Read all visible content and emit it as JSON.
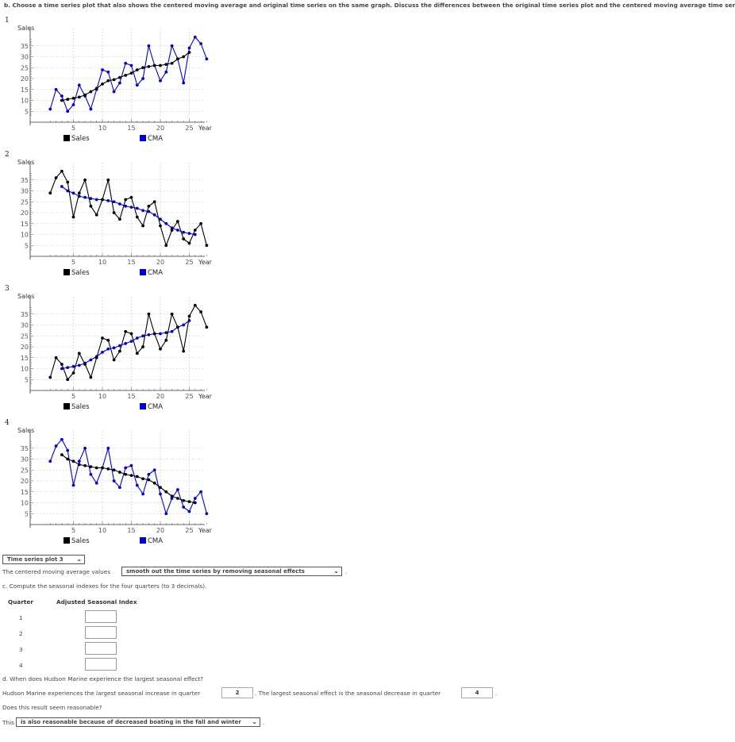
{
  "question_b": "b. Choose a time series plot that also shows the centered moving average and original time series on the same graph. Discuss the differences between the original time series plot and the centered moving average time series.",
  "plots": [
    {
      "number": "1",
      "sales_color": "#0000dd",
      "cma_color": "#000000",
      "legend_sales": "Sales",
      "legend_cma": "CMA"
    },
    {
      "number": "2",
      "sales_color": "#000000",
      "cma_color": "#0000dd",
      "legend_sales": "Sales",
      "legend_cma": "CMA"
    },
    {
      "number": "3",
      "sales_color": "#000000",
      "cma_color": "#0000dd",
      "legend_sales": "Sales",
      "legend_cma": "CMA"
    },
    {
      "number": "4",
      "sales_color": "#0000dd",
      "cma_color": "#000000",
      "legend_sales": "Sales",
      "legend_cma": "CMA"
    }
  ],
  "chart_data": [
    {
      "type": "line",
      "ylabel": "Sales",
      "xlabel": "Year",
      "x_ticks": [
        5,
        10,
        15,
        20,
        25
      ],
      "y_ticks": [
        5,
        10,
        15,
        20,
        25,
        30,
        35
      ],
      "ylim": [
        2,
        40
      ],
      "xlim": [
        0,
        28
      ],
      "x": [
        1,
        2,
        3,
        4,
        5,
        6,
        7,
        8,
        9,
        10,
        11,
        12,
        13,
        14,
        15,
        16,
        17,
        18,
        19,
        20,
        21,
        22,
        23,
        24,
        25,
        26,
        27,
        28
      ],
      "series": [
        {
          "name": "Sales",
          "values": [
            6,
            15,
            12,
            5,
            8,
            17,
            12,
            6,
            15,
            24,
            23,
            14,
            18,
            27,
            26,
            17,
            20,
            35,
            26,
            19,
            23,
            35,
            29,
            18,
            34,
            39,
            36,
            29
          ]
        },
        {
          "name": "CMA",
          "values": [
            null,
            null,
            10,
            10.5,
            11,
            11.5,
            12.5,
            14,
            15.5,
            17.5,
            19,
            19.5,
            20.5,
            21.5,
            22.5,
            24,
            25,
            25.5,
            26,
            26,
            26.5,
            27,
            29,
            30,
            32,
            null,
            null,
            null
          ]
        }
      ]
    },
    {
      "type": "line",
      "ylabel": "Sales",
      "xlabel": "Year",
      "x_ticks": [
        5,
        10,
        15,
        20,
        25
      ],
      "y_ticks": [
        5,
        10,
        15,
        20,
        25,
        30,
        35
      ],
      "ylim": [
        2,
        40
      ],
      "xlim": [
        0,
        28
      ],
      "x": [
        1,
        2,
        3,
        4,
        5,
        6,
        7,
        8,
        9,
        10,
        11,
        12,
        13,
        14,
        15,
        16,
        17,
        18,
        19,
        20,
        21,
        22,
        23,
        24,
        25,
        26,
        27,
        28
      ],
      "series": [
        {
          "name": "Sales",
          "values": [
            29,
            36,
            39,
            34,
            18,
            29,
            35,
            23,
            19,
            26,
            35,
            20,
            17,
            26,
            27,
            18,
            14,
            23,
            25,
            14,
            5,
            12,
            16,
            8,
            6,
            12,
            15,
            5
          ]
        },
        {
          "name": "CMA",
          "values": [
            null,
            null,
            32,
            30,
            29,
            27.5,
            27,
            26.5,
            26,
            26,
            25.5,
            25,
            24,
            23,
            22.5,
            22,
            21,
            20.5,
            19,
            17,
            15,
            13,
            12,
            11,
            10.5,
            10,
            null,
            null
          ]
        }
      ]
    },
    {
      "type": "line",
      "ylabel": "Sales",
      "xlabel": "Year",
      "x_ticks": [
        5,
        10,
        15,
        20,
        25
      ],
      "y_ticks": [
        5,
        10,
        15,
        20,
        25,
        30,
        35
      ],
      "ylim": [
        2,
        40
      ],
      "xlim": [
        0,
        28
      ],
      "x": [
        1,
        2,
        3,
        4,
        5,
        6,
        7,
        8,
        9,
        10,
        11,
        12,
        13,
        14,
        15,
        16,
        17,
        18,
        19,
        20,
        21,
        22,
        23,
        24,
        25,
        26,
        27,
        28
      ],
      "series": [
        {
          "name": "Sales",
          "values": [
            6,
            15,
            12,
            5,
            8,
            17,
            12,
            6,
            15,
            24,
            23,
            14,
            18,
            27,
            26,
            17,
            20,
            35,
            26,
            19,
            23,
            35,
            29,
            18,
            34,
            39,
            36,
            29
          ]
        },
        {
          "name": "CMA",
          "values": [
            null,
            null,
            10,
            10.5,
            11,
            11.5,
            12.5,
            14,
            15.5,
            17.5,
            19,
            19.5,
            20.5,
            21.5,
            22.5,
            24,
            25,
            25.5,
            26,
            26,
            26.5,
            27,
            29,
            30,
            32,
            null,
            null,
            null
          ]
        }
      ]
    },
    {
      "type": "line",
      "ylabel": "Sales",
      "xlabel": "Year",
      "x_ticks": [
        5,
        10,
        15,
        20,
        25
      ],
      "y_ticks": [
        5,
        10,
        15,
        20,
        25,
        30,
        35
      ],
      "ylim": [
        2,
        40
      ],
      "xlim": [
        0,
        28
      ],
      "x": [
        1,
        2,
        3,
        4,
        5,
        6,
        7,
        8,
        9,
        10,
        11,
        12,
        13,
        14,
        15,
        16,
        17,
        18,
        19,
        20,
        21,
        22,
        23,
        24,
        25,
        26,
        27,
        28
      ],
      "series": [
        {
          "name": "Sales",
          "values": [
            29,
            36,
            39,
            34,
            18,
            29,
            35,
            23,
            19,
            26,
            35,
            20,
            17,
            26,
            27,
            18,
            14,
            23,
            25,
            14,
            5,
            12,
            16,
            8,
            6,
            12,
            15,
            5
          ]
        },
        {
          "name": "CMA",
          "values": [
            null,
            null,
            32,
            30,
            29,
            27.5,
            27,
            26.5,
            26,
            26,
            25.5,
            25,
            24,
            23,
            22.5,
            22,
            21,
            20.5,
            19,
            17,
            15,
            13,
            12,
            11,
            10.5,
            10,
            null,
            null
          ]
        }
      ]
    }
  ],
  "selection": {
    "plot_choice": "Time series plot 3"
  },
  "cma_sentence": {
    "prefix": "The centered moving average values",
    "choice": "smooth out the time series by removing seasonal effects",
    "suffix": "."
  },
  "question_c": "c. Compute the seasonal indexes for the four quarters (to 3 decimals).",
  "table": {
    "header_quarter": "Quarter",
    "header_index": "Adjusted Seasonal Index",
    "quarters": [
      "1",
      "2",
      "3",
      "4"
    ]
  },
  "question_d": "d. When does Hudson Marine experience the largest seasonal effect?",
  "answer_d": {
    "prefix": "Hudson Marine experiences the largest seasonal increase in quarter",
    "increase_value": "2",
    "middle": ". The largest seasonal effect is the seasonal decrease in quarter",
    "decrease_value": "4",
    "suffix": "."
  },
  "reasonable": {
    "question": "Does this result seem reasonable?",
    "prefix": "This",
    "choice": "is also reasonable because of decreased boating in the fall and winter",
    "suffix": "."
  }
}
